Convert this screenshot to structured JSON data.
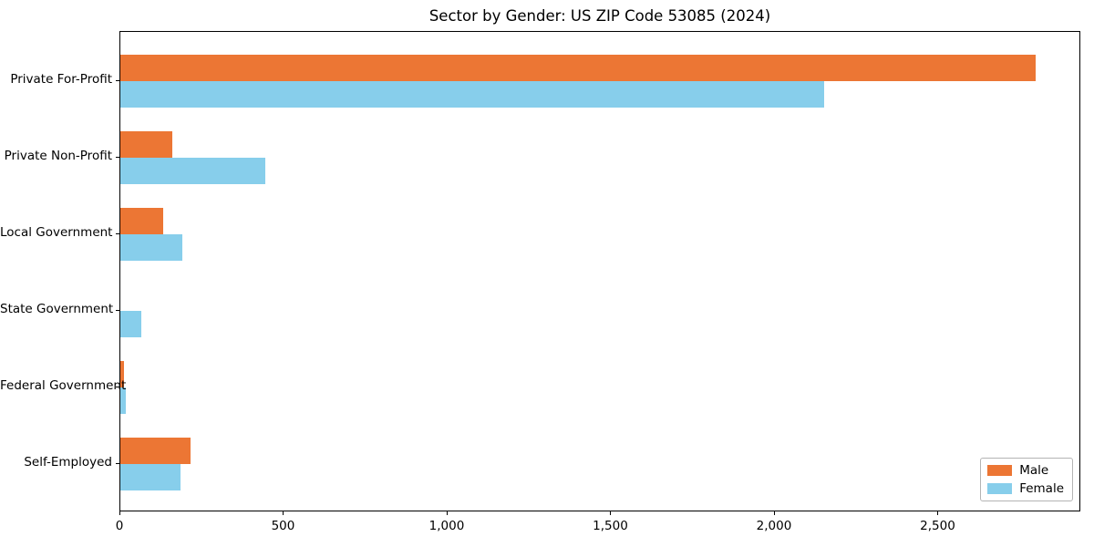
{
  "chart_data": {
    "type": "bar",
    "orientation": "horizontal",
    "title": "Sector by Gender: US ZIP Code 53085 (2024)",
    "categories": [
      "Private For-Profit",
      "Private Non-Profit",
      "Local Government",
      "State Government",
      "Federal Government",
      "Self-Employed"
    ],
    "series": [
      {
        "name": "Male",
        "color": "#EC7634",
        "values": [
          2796,
          160,
          130,
          0,
          10,
          215
        ]
      },
      {
        "name": "Female",
        "color": "#87CEEB",
        "values": [
          2150,
          443,
          190,
          63,
          18,
          185
        ]
      }
    ],
    "xlabel": "",
    "ylabel": "",
    "xlim": [
      0,
      2936
    ],
    "xticks": {
      "values": [
        0,
        500,
        1000,
        1500,
        2000,
        2500
      ],
      "labels": [
        "0",
        "500",
        "1,000",
        "1,500",
        "2,000",
        "2,500"
      ]
    },
    "grid": false,
    "legend_position": "lower right",
    "plot_border_color": "#000000",
    "background_color": "#ffffff"
  }
}
